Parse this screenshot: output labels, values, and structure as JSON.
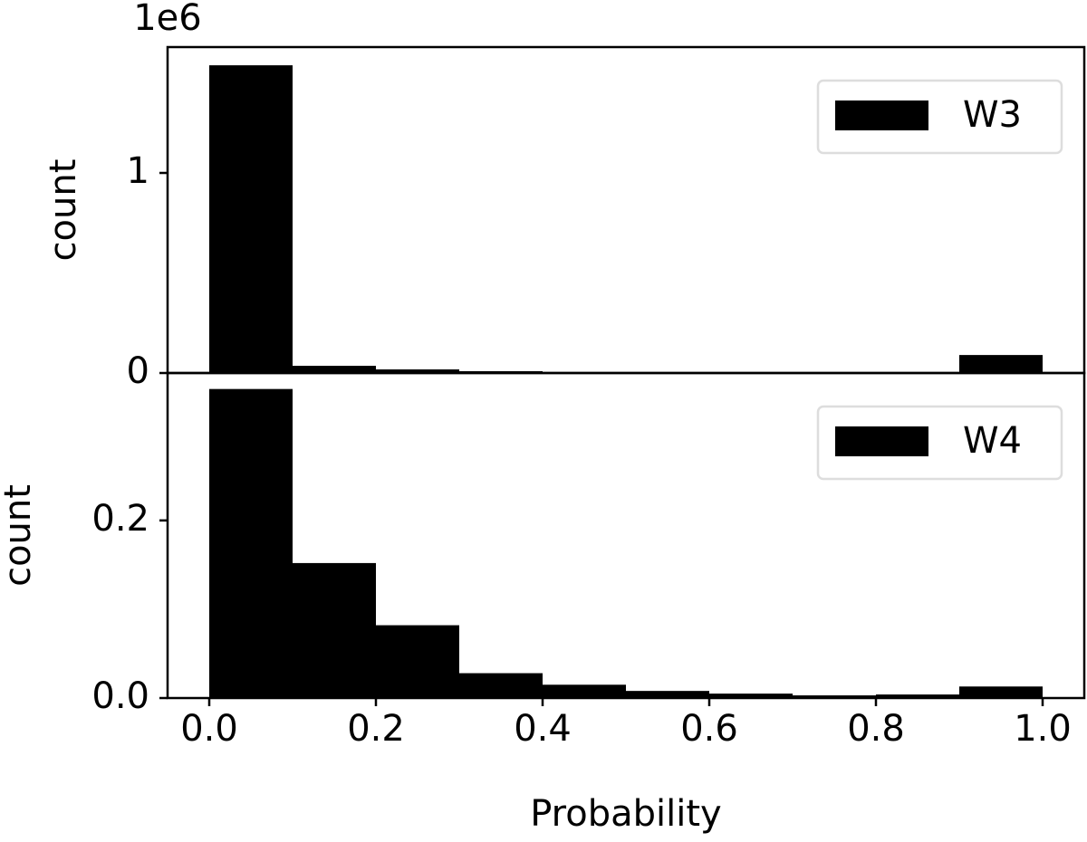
{
  "chart_data": [
    {
      "type": "histogram",
      "y_label": "count",
      "y_offset_label": "1e6",
      "bins": [
        0.0,
        0.1,
        0.2,
        0.3,
        0.4,
        0.5,
        0.6,
        0.7,
        0.8,
        0.9,
        1.0
      ],
      "series": [
        {
          "name": "W3",
          "color": "#000000",
          "values": [
            1538000,
            36000,
            18000,
            9000,
            3000,
            2000,
            2000,
            2000,
            4000,
            90000
          ]
        }
      ],
      "xlim": [
        -0.05,
        1.05
      ],
      "ylim": [
        0,
        1629000
      ],
      "yticks": [
        0,
        {
          "value": 1000000,
          "label": "1"
        }
      ],
      "legend": "upper right"
    },
    {
      "type": "histogram",
      "y_label": "count",
      "x_label": "Probability",
      "bins": [
        0.0,
        0.1,
        0.2,
        0.3,
        0.4,
        0.5,
        0.6,
        0.7,
        0.8,
        0.9,
        1.0
      ],
      "series": [
        {
          "name": "W4",
          "color": "#000000",
          "values": [
            0.348,
            0.152,
            0.082,
            0.028,
            0.015,
            0.008,
            0.005,
            0.003,
            0.004,
            0.013
          ]
        }
      ],
      "xlim": [
        -0.05,
        1.05
      ],
      "ylim": [
        0,
        0.366
      ],
      "xticks": [
        {
          "value": 0,
          "label": "0.0"
        },
        0.2,
        0.4,
        0.6,
        0.8,
        {
          "value": 1,
          "label": "1.0"
        }
      ],
      "yticks": [
        {
          "value": 0,
          "label": "0.0"
        },
        0.2
      ],
      "legend": "upper right"
    }
  ]
}
